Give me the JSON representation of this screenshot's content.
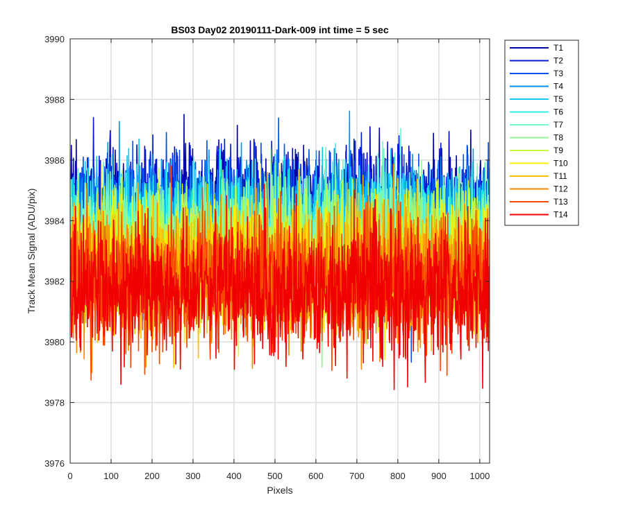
{
  "chart_data": {
    "type": "line",
    "title": "BS03 Day02 20190111-Dark-009 int time = 5 sec",
    "xlabel": "Pixels",
    "ylabel": "Track Mean Signal (ADU/pix)",
    "xlim": [
      0,
      1024
    ],
    "ylim": [
      3976,
      3990
    ],
    "xticks": [
      0,
      100,
      200,
      300,
      400,
      500,
      600,
      700,
      800,
      900,
      1000
    ],
    "yticks": [
      3976,
      3978,
      3980,
      3982,
      3984,
      3986,
      3988,
      3990
    ],
    "grid": true,
    "legend_position": "outside-top-right",
    "n_points": 1024,
    "series": [
      {
        "name": "T1",
        "color": "#0000a8",
        "mean": 3984.5,
        "spread": 0.95
      },
      {
        "name": "T2",
        "color": "#0018d8",
        "mean": 3984.4,
        "spread": 0.95
      },
      {
        "name": "T3",
        "color": "#0050ee",
        "mean": 3984.2,
        "spread": 0.95
      },
      {
        "name": "T4",
        "color": "#0090f0",
        "mean": 3984.0,
        "spread": 0.95
      },
      {
        "name": "T5",
        "color": "#10c8f4",
        "mean": 3983.8,
        "spread": 0.95
      },
      {
        "name": "T6",
        "color": "#30f0e8",
        "mean": 3983.6,
        "spread": 0.95
      },
      {
        "name": "T7",
        "color": "#70f8c8",
        "mean": 3983.4,
        "spread": 1.0
      },
      {
        "name": "T8",
        "color": "#90f890",
        "mean": 3983.2,
        "spread": 1.0
      },
      {
        "name": "T9",
        "color": "#c8f840",
        "mean": 3982.9,
        "spread": 1.0
      },
      {
        "name": "T10",
        "color": "#f8f000",
        "mean": 3982.6,
        "spread": 1.05
      },
      {
        "name": "T11",
        "color": "#f8c000",
        "mean": 3982.4,
        "spread": 1.05
      },
      {
        "name": "T12",
        "color": "#f88800",
        "mean": 3982.2,
        "spread": 1.05
      },
      {
        "name": "T13",
        "color": "#f84800",
        "mean": 3982.0,
        "spread": 1.05
      },
      {
        "name": "T14",
        "color": "#f00000",
        "mean": 3981.8,
        "spread": 1.1
      }
    ]
  }
}
